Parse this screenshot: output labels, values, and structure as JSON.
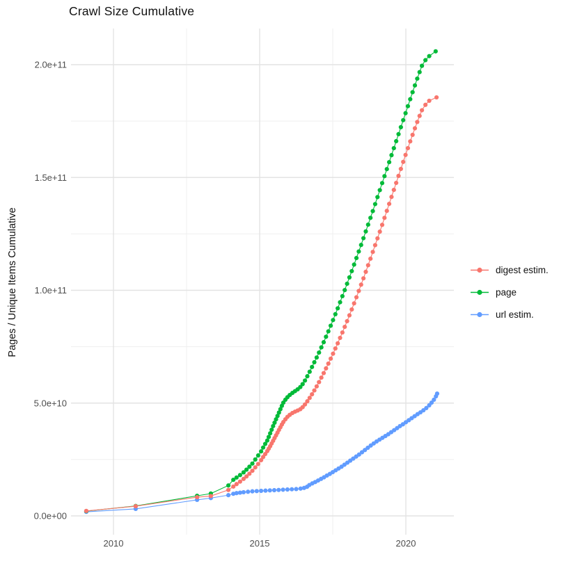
{
  "title": "Crawl Size Cumulative",
  "chart_data": {
    "type": "scatter",
    "title": "Crawl Size Cumulative",
    "xlabel": "",
    "ylabel": "Pages / Unique Items Cumulative",
    "y_unit": "billions (1e9)",
    "xlim": [
      2008.55,
      2021.64
    ],
    "ylim_e9": [
      -8.3,
      216
    ],
    "grid": "on",
    "legend_position": "right",
    "background": "#ffffff",
    "gridline_major_color": "#e3e3e3",
    "gridline_minor_color": "#efefef",
    "axis_text_color": "#4d4d4d",
    "x_ticks": {
      "values": [
        2010,
        2015,
        2020
      ],
      "labels": [
        "2010",
        "2015",
        "2020"
      ]
    },
    "x_minor_ticks": [
      2012.5,
      2017.5
    ],
    "y_ticks": {
      "values": [
        0,
        50,
        100,
        150,
        200
      ],
      "labels": [
        "0.0e+00",
        "5.0e+10",
        "1.0e+11",
        "1.5e+11",
        "2.0e+11"
      ]
    },
    "y_minor_ticks": [
      25,
      75,
      125,
      175
    ],
    "series": [
      {
        "name": "digest estim.",
        "color": "#F8766D",
        "points": [
          [
            2009.07,
            2.2
          ],
          [
            2010.76,
            4.3
          ],
          [
            2012.86,
            8.3
          ],
          [
            2013.33,
            8.8
          ],
          [
            2013.93,
            11.5
          ],
          [
            2014.1,
            13.0
          ],
          [
            2014.21,
            14.1
          ],
          [
            2014.33,
            15.2
          ],
          [
            2014.45,
            16.4
          ],
          [
            2014.55,
            17.5
          ],
          [
            2014.65,
            18.7
          ],
          [
            2014.75,
            20.0
          ],
          [
            2014.85,
            21.5
          ],
          [
            2014.95,
            23.0
          ],
          [
            2015.05,
            24.7
          ],
          [
            2015.12,
            26.1
          ],
          [
            2015.19,
            27.4
          ],
          [
            2015.26,
            28.7
          ],
          [
            2015.31,
            29.8
          ],
          [
            2015.36,
            30.9
          ],
          [
            2015.41,
            32.1
          ],
          [
            2015.46,
            33.3
          ],
          [
            2015.51,
            34.5
          ],
          [
            2015.56,
            35.7
          ],
          [
            2015.61,
            36.9
          ],
          [
            2015.66,
            38.1
          ],
          [
            2015.71,
            39.3
          ],
          [
            2015.76,
            40.5
          ],
          [
            2015.81,
            41.6
          ],
          [
            2015.88,
            42.8
          ],
          [
            2015.95,
            43.9
          ],
          [
            2016.03,
            44.8
          ],
          [
            2016.12,
            45.6
          ],
          [
            2016.21,
            46.2
          ],
          [
            2016.3,
            46.7
          ],
          [
            2016.39,
            47.3
          ],
          [
            2016.47,
            48.2
          ],
          [
            2016.55,
            49.4
          ],
          [
            2016.63,
            50.8
          ],
          [
            2016.71,
            52.3
          ],
          [
            2016.79,
            53.9
          ],
          [
            2016.87,
            55.6
          ],
          [
            2016.95,
            57.4
          ],
          [
            2017.03,
            59.3
          ],
          [
            2017.11,
            61.3
          ],
          [
            2017.19,
            63.3
          ],
          [
            2017.27,
            65.4
          ],
          [
            2017.35,
            67.5
          ],
          [
            2017.43,
            69.7
          ],
          [
            2017.51,
            71.9
          ],
          [
            2017.59,
            74.2
          ],
          [
            2017.67,
            76.5
          ],
          [
            2017.75,
            78.9
          ],
          [
            2017.83,
            81.3
          ],
          [
            2017.91,
            83.8
          ],
          [
            2017.99,
            86.3
          ],
          [
            2018.07,
            88.9
          ],
          [
            2018.15,
            91.5
          ],
          [
            2018.23,
            94.2
          ],
          [
            2018.31,
            96.9
          ],
          [
            2018.39,
            99.7
          ],
          [
            2018.47,
            102.5
          ],
          [
            2018.55,
            105.3
          ],
          [
            2018.63,
            108.2
          ],
          [
            2018.71,
            111.1
          ],
          [
            2018.79,
            114.0
          ],
          [
            2018.87,
            117.0
          ],
          [
            2018.95,
            120.0
          ],
          [
            2019.03,
            123.0
          ],
          [
            2019.11,
            126.0
          ],
          [
            2019.19,
            129.0
          ],
          [
            2019.27,
            132.1
          ],
          [
            2019.35,
            135.2
          ],
          [
            2019.43,
            138.3
          ],
          [
            2019.51,
            141.4
          ],
          [
            2019.59,
            144.5
          ],
          [
            2019.67,
            147.6
          ],
          [
            2019.75,
            150.7
          ],
          [
            2019.83,
            153.8
          ],
          [
            2019.91,
            156.9
          ],
          [
            2019.99,
            160.0
          ],
          [
            2020.07,
            163.0
          ],
          [
            2020.15,
            166.0
          ],
          [
            2020.23,
            168.9
          ],
          [
            2020.31,
            171.8
          ],
          [
            2020.39,
            174.6
          ],
          [
            2020.47,
            177.3
          ],
          [
            2020.55,
            179.8
          ],
          [
            2020.67,
            182.2
          ],
          [
            2020.8,
            184.0
          ],
          [
            2021.05,
            185.5
          ]
        ]
      },
      {
        "name": "page",
        "color": "#00BA38",
        "points": [
          [
            2009.07,
            2.1
          ],
          [
            2010.76,
            4.4
          ],
          [
            2012.86,
            8.9
          ],
          [
            2013.33,
            9.9
          ],
          [
            2013.93,
            13.5
          ],
          [
            2014.1,
            16.0
          ],
          [
            2014.21,
            17.0
          ],
          [
            2014.33,
            18.1
          ],
          [
            2014.45,
            19.3
          ],
          [
            2014.55,
            20.5
          ],
          [
            2014.65,
            21.8
          ],
          [
            2014.75,
            23.2
          ],
          [
            2014.85,
            25.0
          ],
          [
            2014.95,
            26.8
          ],
          [
            2015.05,
            28.6
          ],
          [
            2015.12,
            30.3
          ],
          [
            2015.19,
            31.9
          ],
          [
            2015.26,
            33.4
          ],
          [
            2015.31,
            35.0
          ],
          [
            2015.36,
            36.6
          ],
          [
            2015.41,
            38.2
          ],
          [
            2015.46,
            39.8
          ],
          [
            2015.51,
            41.3
          ],
          [
            2015.56,
            42.8
          ],
          [
            2015.61,
            44.3
          ],
          [
            2015.66,
            45.8
          ],
          [
            2015.71,
            47.3
          ],
          [
            2015.76,
            48.8
          ],
          [
            2015.81,
            50.2
          ],
          [
            2015.88,
            51.5
          ],
          [
            2015.95,
            52.6
          ],
          [
            2016.03,
            53.6
          ],
          [
            2016.12,
            54.5
          ],
          [
            2016.21,
            55.3
          ],
          [
            2016.3,
            56.1
          ],
          [
            2016.39,
            57.1
          ],
          [
            2016.47,
            58.4
          ],
          [
            2016.55,
            60.0
          ],
          [
            2016.63,
            61.9
          ],
          [
            2016.71,
            63.9
          ],
          [
            2016.79,
            66.0
          ],
          [
            2016.87,
            68.1
          ],
          [
            2016.95,
            70.2
          ],
          [
            2017.03,
            72.4
          ],
          [
            2017.11,
            74.7
          ],
          [
            2017.19,
            77.0
          ],
          [
            2017.27,
            79.4
          ],
          [
            2017.35,
            81.8
          ],
          [
            2017.43,
            84.3
          ],
          [
            2017.51,
            86.8
          ],
          [
            2017.59,
            89.4
          ],
          [
            2017.67,
            92.0
          ],
          [
            2017.75,
            94.7
          ],
          [
            2017.83,
            97.4
          ],
          [
            2017.91,
            100.1
          ],
          [
            2017.99,
            102.9
          ],
          [
            2018.07,
            105.7
          ],
          [
            2018.15,
            108.5
          ],
          [
            2018.23,
            111.4
          ],
          [
            2018.31,
            114.3
          ],
          [
            2018.39,
            117.2
          ],
          [
            2018.47,
            120.1
          ],
          [
            2018.55,
            123.1
          ],
          [
            2018.63,
            126.1
          ],
          [
            2018.71,
            129.1
          ],
          [
            2018.79,
            132.1
          ],
          [
            2018.87,
            135.1
          ],
          [
            2018.95,
            138.2
          ],
          [
            2019.03,
            141.3
          ],
          [
            2019.11,
            144.4
          ],
          [
            2019.19,
            147.5
          ],
          [
            2019.27,
            150.6
          ],
          [
            2019.35,
            153.7
          ],
          [
            2019.43,
            156.8
          ],
          [
            2019.51,
            159.9
          ],
          [
            2019.59,
            163.0
          ],
          [
            2019.67,
            166.1
          ],
          [
            2019.75,
            169.2
          ],
          [
            2019.83,
            172.3
          ],
          [
            2019.91,
            175.4
          ],
          [
            2019.99,
            178.5
          ],
          [
            2020.07,
            181.6
          ],
          [
            2020.15,
            184.7
          ],
          [
            2020.23,
            187.8
          ],
          [
            2020.31,
            190.8
          ],
          [
            2020.39,
            193.8
          ],
          [
            2020.47,
            196.7
          ],
          [
            2020.55,
            199.5
          ],
          [
            2020.67,
            202.0
          ],
          [
            2020.8,
            203.8
          ],
          [
            2021.02,
            205.9
          ]
        ]
      },
      {
        "name": "url estim.",
        "color": "#619CFF",
        "points": [
          [
            2009.07,
            1.8
          ],
          [
            2010.76,
            3.1
          ],
          [
            2012.86,
            7.1
          ],
          [
            2013.33,
            7.9
          ],
          [
            2013.93,
            9.2
          ],
          [
            2014.1,
            9.8
          ],
          [
            2014.21,
            10.1
          ],
          [
            2014.33,
            10.3
          ],
          [
            2014.45,
            10.5
          ],
          [
            2014.6,
            10.7
          ],
          [
            2014.75,
            10.9
          ],
          [
            2014.9,
            11.0
          ],
          [
            2015.05,
            11.1
          ],
          [
            2015.2,
            11.2
          ],
          [
            2015.35,
            11.3
          ],
          [
            2015.5,
            11.4
          ],
          [
            2015.65,
            11.5
          ],
          [
            2015.8,
            11.6
          ],
          [
            2015.95,
            11.7
          ],
          [
            2016.1,
            11.8
          ],
          [
            2016.25,
            11.9
          ],
          [
            2016.4,
            12.1
          ],
          [
            2016.52,
            12.4
          ],
          [
            2016.62,
            12.9
          ],
          [
            2016.7,
            13.7
          ],
          [
            2016.8,
            14.4
          ],
          [
            2016.9,
            15.0
          ],
          [
            2017.0,
            15.7
          ],
          [
            2017.1,
            16.4
          ],
          [
            2017.2,
            17.1
          ],
          [
            2017.3,
            17.9
          ],
          [
            2017.4,
            18.6
          ],
          [
            2017.5,
            19.4
          ],
          [
            2017.6,
            20.2
          ],
          [
            2017.7,
            21.0
          ],
          [
            2017.8,
            21.8
          ],
          [
            2017.9,
            22.7
          ],
          [
            2018.0,
            23.6
          ],
          [
            2018.1,
            24.5
          ],
          [
            2018.2,
            25.4
          ],
          [
            2018.3,
            26.3
          ],
          [
            2018.4,
            27.2
          ],
          [
            2018.5,
            28.2
          ],
          [
            2018.6,
            29.2
          ],
          [
            2018.7,
            30.2
          ],
          [
            2018.8,
            31.2
          ],
          [
            2018.9,
            32.1
          ],
          [
            2019.0,
            33.0
          ],
          [
            2019.1,
            33.8
          ],
          [
            2019.2,
            34.6
          ],
          [
            2019.3,
            35.4
          ],
          [
            2019.4,
            36.2
          ],
          [
            2019.5,
            37.1
          ],
          [
            2019.6,
            38.0
          ],
          [
            2019.7,
            38.9
          ],
          [
            2019.8,
            39.8
          ],
          [
            2019.9,
            40.6
          ],
          [
            2020.0,
            41.5
          ],
          [
            2020.1,
            42.4
          ],
          [
            2020.2,
            43.3
          ],
          [
            2020.3,
            44.2
          ],
          [
            2020.4,
            45.1
          ],
          [
            2020.5,
            45.9
          ],
          [
            2020.6,
            46.8
          ],
          [
            2020.7,
            47.8
          ],
          [
            2020.8,
            49.0
          ],
          [
            2020.88,
            50.2
          ],
          [
            2020.96,
            51.5
          ],
          [
            2021.03,
            53.0
          ],
          [
            2021.07,
            54.2
          ]
        ]
      }
    ],
    "legend": {
      "items": [
        {
          "label": "digest estim.",
          "color": "#F8766D"
        },
        {
          "label": "page",
          "color": "#00BA38"
        },
        {
          "label": "url estim.",
          "color": "#619CFF"
        }
      ]
    }
  }
}
